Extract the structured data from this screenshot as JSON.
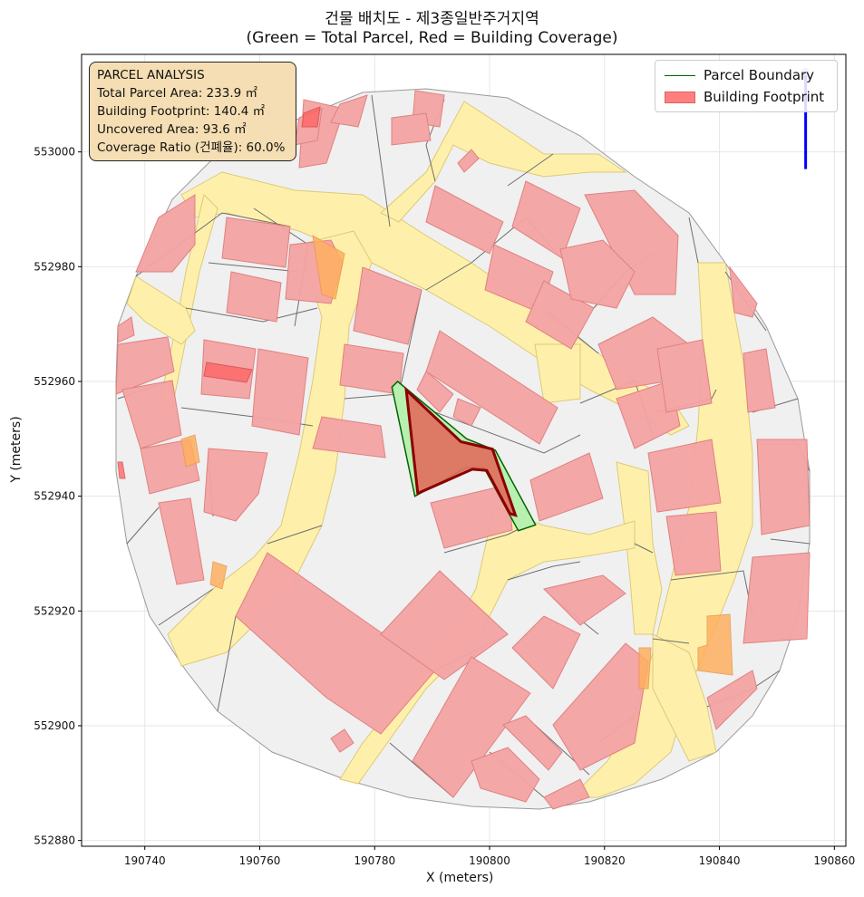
{
  "figure": {
    "title_line1": "건물 배치도 - 제3종일반주거지역",
    "title_line2": "(Green = Total Parcel, Red = Building Coverage)"
  },
  "info_box": {
    "heading": "PARCEL ANALYSIS",
    "lines": [
      "Total Parcel Area: 233.9 ㎡",
      "Building Footprint: 140.4 ㎡",
      "Uncovered Area: 93.6 ㎡",
      "Coverage Ratio (건폐율): 60.0%"
    ]
  },
  "legend": {
    "items": [
      "Parcel Boundary",
      "Building Footprint"
    ]
  },
  "colors": {
    "parcel_boundary": "#006400",
    "parcel_fill": "#b8f0b0",
    "building_fill": "#f07878",
    "context_building": "#f4a4a4",
    "road": "#fff1a8",
    "block": "#f0f0f0",
    "north_arrow": "#0000ff"
  },
  "chart_data": {
    "type": "map-plot",
    "title": "건물 배치도 - 제3종일반주거지역 (Green = Total Parcel, Red = Building Coverage)",
    "xlabel": "X (meters)",
    "ylabel": "Y (meters)",
    "xlim": [
      190729,
      190862
    ],
    "ylim": [
      552879,
      553017
    ],
    "xticks": [
      190740,
      190760,
      190780,
      190800,
      190820,
      190840,
      190860
    ],
    "yticks": [
      552880,
      552900,
      552920,
      552940,
      552960,
      552980,
      553000
    ],
    "grid": true,
    "legend_position": "top-right",
    "info_box_position": "top-left",
    "parcel": {
      "name": "Parcel Boundary",
      "coords": [
        [
          190784,
          552960
        ],
        [
          190796,
          552950
        ],
        [
          190801,
          552948
        ],
        [
          190808,
          552935
        ],
        [
          190805,
          552934
        ],
        [
          190799,
          552945
        ],
        [
          190796,
          552945
        ],
        [
          190787,
          552940
        ],
        [
          190783,
          552959
        ]
      ]
    },
    "building": {
      "name": "Building Footprint",
      "coords": [
        [
          190785.5,
          552958.5
        ],
        [
          190795,
          552949.5
        ],
        [
          190800.5,
          552948.2
        ],
        [
          190804.5,
          552936.7
        ],
        [
          190803.5,
          552937
        ],
        [
          190799.5,
          552944.5
        ],
        [
          190797,
          552944.7
        ],
        [
          190787.5,
          552940.5
        ]
      ]
    },
    "north_arrow": {
      "x": 190855,
      "y_from": 552997,
      "y_to": 553014
    }
  }
}
